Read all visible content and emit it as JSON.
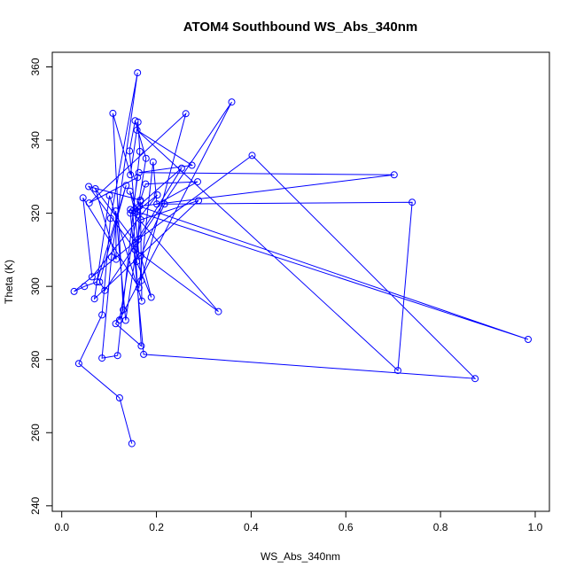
{
  "chart_data": {
    "type": "line",
    "title": "ATOM4 Southbound WS_Abs_340nm",
    "xlabel": "WS_Abs_340nm",
    "ylabel": "Theta (K)",
    "xlim": [
      -0.02,
      1.03
    ],
    "ylim": [
      238.5,
      364.0
    ],
    "xticks": [
      0.0,
      0.2,
      0.4,
      0.6,
      0.8,
      1.0
    ],
    "xtick_labels": [
      "0.0",
      "0.2",
      "0.4",
      "0.6",
      "0.8",
      "1.0"
    ],
    "yticks": [
      240,
      260,
      280,
      300,
      320,
      340,
      360
    ],
    "ytick_labels": [
      "240",
      "260",
      "280",
      "300",
      "320",
      "340",
      "360"
    ],
    "grid": false,
    "color": "#0000ff",
    "markers": "open-circle",
    "series": [
      {
        "points": [
          [
            0.148,
            257.0
          ],
          [
            0.122,
            269.5
          ],
          [
            0.036,
            278.9
          ],
          [
            0.085,
            292.2
          ],
          [
            0.103,
            318.6
          ],
          [
            0.16,
            358.4
          ],
          [
            0.105,
            308.0
          ],
          [
            0.085,
            280.4
          ],
          [
            0.118,
            281.1
          ],
          [
            0.165,
            336.9
          ],
          [
            0.161,
            344.9
          ],
          [
            0.145,
            330.5
          ],
          [
            0.108,
            347.3
          ],
          [
            0.13,
            293.6
          ],
          [
            0.114,
            289.8
          ],
          [
            0.168,
            283.7
          ],
          [
            0.15,
            320.6
          ],
          [
            0.16,
            329.8
          ],
          [
            0.058,
            322.8
          ],
          [
            0.262,
            347.2
          ],
          [
            0.168,
            301.6
          ],
          [
            0.143,
            337.0
          ],
          [
            0.155,
            345.3
          ],
          [
            0.178,
            335.0
          ],
          [
            0.122,
            290.8
          ],
          [
            0.359,
            350.4
          ],
          [
            0.091,
            298.9
          ],
          [
            0.08,
            301.2
          ],
          [
            0.136,
            327.6
          ],
          [
            0.074,
            301.2
          ],
          [
            0.048,
            300.0
          ],
          [
            0.026,
            298.6
          ],
          [
            0.162,
            312.9
          ],
          [
            0.402,
            335.8
          ],
          [
            0.873,
            274.8
          ],
          [
            0.173,
            281.4
          ],
          [
            0.145,
            320.0
          ],
          [
            0.253,
            332.3
          ],
          [
            0.156,
            312.0
          ],
          [
            0.071,
            326.7
          ],
          [
            0.115,
            307.4
          ],
          [
            0.114,
            320.6
          ],
          [
            0.135,
            290.7
          ],
          [
            0.167,
            318.2
          ],
          [
            0.289,
            323.5
          ],
          [
            0.069,
            296.6
          ],
          [
            0.101,
            324.8
          ],
          [
            0.169,
            296.0
          ],
          [
            0.166,
            323.2
          ],
          [
            0.158,
            306.8
          ],
          [
            0.189,
            297.0
          ],
          [
            0.167,
            308.4
          ],
          [
            0.217,
            322.5
          ],
          [
            0.74,
            323.0
          ],
          [
            0.71,
            277.0
          ],
          [
            0.159,
            342.7
          ],
          [
            0.275,
            333.1
          ],
          [
            0.163,
            331.1
          ],
          [
            0.702,
            330.5
          ],
          [
            0.164,
            321.9
          ],
          [
            0.985,
            285.5
          ],
          [
            0.145,
            321.0
          ],
          [
            0.331,
            293.1
          ],
          [
            0.155,
            310.0
          ],
          [
            0.057,
            327.3
          ],
          [
            0.166,
            323.6
          ],
          [
            0.177,
            328.0
          ],
          [
            0.287,
            328.6
          ],
          [
            0.201,
            322.5
          ],
          [
            0.193,
            334.0
          ],
          [
            0.163,
            299.6
          ],
          [
            0.045,
            324.2
          ],
          [
            0.064,
            302.6
          ],
          [
            0.202,
            325.0
          ],
          [
            0.155,
            320.1
          ],
          [
            0.144,
            326.0
          ],
          [
            0.16,
            320.5
          ]
        ]
      }
    ]
  }
}
